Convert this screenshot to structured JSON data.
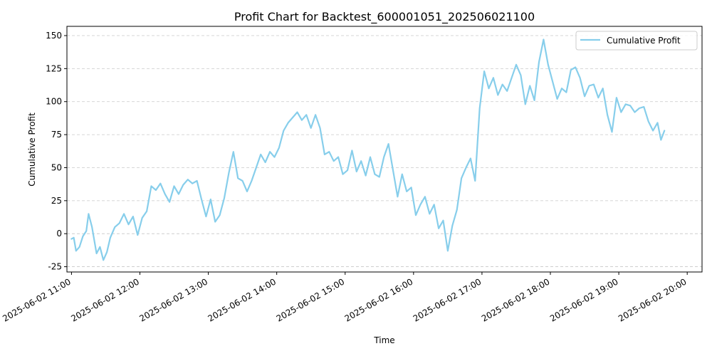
{
  "chart_data": {
    "type": "line",
    "title": "Profit Chart for Backtest_600001051_202506021100",
    "xlabel": "Time",
    "ylabel": "Cumulative Profit",
    "x_is_time": true,
    "xlim": [
      "2025-06-02 10:56",
      "2025-06-02 20:13"
    ],
    "ylim": [
      -29,
      157
    ],
    "yticks": [
      -25,
      0,
      25,
      50,
      75,
      100,
      125,
      150
    ],
    "xticks": [
      "2025-06-02 11:00",
      "2025-06-02 12:00",
      "2025-06-02 13:00",
      "2025-06-02 14:00",
      "2025-06-02 15:00",
      "2025-06-02 16:00",
      "2025-06-02 17:00",
      "2025-06-02 18:00",
      "2025-06-02 19:00",
      "2025-06-02 20:00"
    ],
    "grid": "y-dashed",
    "legend_position": "top-right",
    "series_color": "#87ceeb",
    "series": [
      {
        "name": "Cumulative Profit",
        "points": [
          [
            "2025-06-02 11:00",
            -4
          ],
          [
            "2025-06-02 11:02",
            -3
          ],
          [
            "2025-06-02 11:04",
            -13
          ],
          [
            "2025-06-02 11:07",
            -10
          ],
          [
            "2025-06-02 11:10",
            -2
          ],
          [
            "2025-06-02 11:13",
            2
          ],
          [
            "2025-06-02 11:15",
            15
          ],
          [
            "2025-06-02 11:18",
            5
          ],
          [
            "2025-06-02 11:22",
            -15
          ],
          [
            "2025-06-02 11:25",
            -10
          ],
          [
            "2025-06-02 11:28",
            -20
          ],
          [
            "2025-06-02 11:31",
            -14
          ],
          [
            "2025-06-02 11:34",
            -3
          ],
          [
            "2025-06-02 11:38",
            5
          ],
          [
            "2025-06-02 11:42",
            8
          ],
          [
            "2025-06-02 11:46",
            15
          ],
          [
            "2025-06-02 11:50",
            7
          ],
          [
            "2025-06-02 11:54",
            13
          ],
          [
            "2025-06-02 11:58",
            -1
          ],
          [
            "2025-06-02 12:02",
            12
          ],
          [
            "2025-06-02 12:06",
            17
          ],
          [
            "2025-06-02 12:10",
            36
          ],
          [
            "2025-06-02 12:14",
            33
          ],
          [
            "2025-06-02 12:18",
            38
          ],
          [
            "2025-06-02 12:22",
            30
          ],
          [
            "2025-06-02 12:26",
            24
          ],
          [
            "2025-06-02 12:30",
            36
          ],
          [
            "2025-06-02 12:34",
            30
          ],
          [
            "2025-06-02 12:38",
            37
          ],
          [
            "2025-06-02 12:42",
            41
          ],
          [
            "2025-06-02 12:46",
            38
          ],
          [
            "2025-06-02 12:50",
            40
          ],
          [
            "2025-06-02 12:54",
            26
          ],
          [
            "2025-06-02 12:58",
            13
          ],
          [
            "2025-06-02 13:02",
            26
          ],
          [
            "2025-06-02 13:06",
            9
          ],
          [
            "2025-06-02 13:10",
            14
          ],
          [
            "2025-06-02 13:14",
            27
          ],
          [
            "2025-06-02 13:18",
            46
          ],
          [
            "2025-06-02 13:22",
            62
          ],
          [
            "2025-06-02 13:26",
            42
          ],
          [
            "2025-06-02 13:30",
            40
          ],
          [
            "2025-06-02 13:34",
            32
          ],
          [
            "2025-06-02 13:38",
            40
          ],
          [
            "2025-06-02 13:42",
            50
          ],
          [
            "2025-06-02 13:46",
            60
          ],
          [
            "2025-06-02 13:50",
            54
          ],
          [
            "2025-06-02 13:54",
            62
          ],
          [
            "2025-06-02 13:58",
            58
          ],
          [
            "2025-06-02 14:02",
            65
          ],
          [
            "2025-06-02 14:06",
            78
          ],
          [
            "2025-06-02 14:10",
            84
          ],
          [
            "2025-06-02 14:14",
            88
          ],
          [
            "2025-06-02 14:18",
            92
          ],
          [
            "2025-06-02 14:22",
            86
          ],
          [
            "2025-06-02 14:26",
            90
          ],
          [
            "2025-06-02 14:30",
            80
          ],
          [
            "2025-06-02 14:34",
            90
          ],
          [
            "2025-06-02 14:38",
            80
          ],
          [
            "2025-06-02 14:42",
            60
          ],
          [
            "2025-06-02 14:46",
            62
          ],
          [
            "2025-06-02 14:50",
            55
          ],
          [
            "2025-06-02 14:54",
            58
          ],
          [
            "2025-06-02 14:58",
            45
          ],
          [
            "2025-06-02 15:02",
            48
          ],
          [
            "2025-06-02 15:06",
            63
          ],
          [
            "2025-06-02 15:10",
            47
          ],
          [
            "2025-06-02 15:14",
            55
          ],
          [
            "2025-06-02 15:18",
            44
          ],
          [
            "2025-06-02 15:22",
            58
          ],
          [
            "2025-06-02 15:26",
            45
          ],
          [
            "2025-06-02 15:30",
            43
          ],
          [
            "2025-06-02 15:34",
            58
          ],
          [
            "2025-06-02 15:38",
            68
          ],
          [
            "2025-06-02 15:42",
            48
          ],
          [
            "2025-06-02 15:46",
            28
          ],
          [
            "2025-06-02 15:50",
            45
          ],
          [
            "2025-06-02 15:54",
            32
          ],
          [
            "2025-06-02 15:58",
            35
          ],
          [
            "2025-06-02 16:02",
            14
          ],
          [
            "2025-06-02 16:06",
            22
          ],
          [
            "2025-06-02 16:10",
            28
          ],
          [
            "2025-06-02 16:14",
            15
          ],
          [
            "2025-06-02 16:18",
            22
          ],
          [
            "2025-06-02 16:22",
            4
          ],
          [
            "2025-06-02 16:26",
            10
          ],
          [
            "2025-06-02 16:30",
            -13
          ],
          [
            "2025-06-02 16:34",
            6
          ],
          [
            "2025-06-02 16:38",
            18
          ],
          [
            "2025-06-02 16:42",
            42
          ],
          [
            "2025-06-02 16:46",
            50
          ],
          [
            "2025-06-02 16:50",
            57
          ],
          [
            "2025-06-02 16:54",
            40
          ],
          [
            "2025-06-02 16:58",
            95
          ],
          [
            "2025-06-02 17:02",
            123
          ],
          [
            "2025-06-02 17:06",
            110
          ],
          [
            "2025-06-02 17:10",
            118
          ],
          [
            "2025-06-02 17:14",
            105
          ],
          [
            "2025-06-02 17:18",
            113
          ],
          [
            "2025-06-02 17:22",
            108
          ],
          [
            "2025-06-02 17:26",
            118
          ],
          [
            "2025-06-02 17:30",
            128
          ],
          [
            "2025-06-02 17:34",
            120
          ],
          [
            "2025-06-02 17:38",
            98
          ],
          [
            "2025-06-02 17:42",
            112
          ],
          [
            "2025-06-02 17:46",
            101
          ],
          [
            "2025-06-02 17:50",
            130
          ],
          [
            "2025-06-02 17:54",
            147
          ],
          [
            "2025-06-02 17:58",
            128
          ],
          [
            "2025-06-02 18:02",
            115
          ],
          [
            "2025-06-02 18:06",
            102
          ],
          [
            "2025-06-02 18:10",
            110
          ],
          [
            "2025-06-02 18:14",
            107
          ],
          [
            "2025-06-02 18:18",
            124
          ],
          [
            "2025-06-02 18:22",
            126
          ],
          [
            "2025-06-02 18:26",
            118
          ],
          [
            "2025-06-02 18:30",
            104
          ],
          [
            "2025-06-02 18:34",
            112
          ],
          [
            "2025-06-02 18:38",
            113
          ],
          [
            "2025-06-02 18:42",
            103
          ],
          [
            "2025-06-02 18:46",
            110
          ],
          [
            "2025-06-02 18:50",
            90
          ],
          [
            "2025-06-02 18:54",
            77
          ],
          [
            "2025-06-02 18:58",
            103
          ],
          [
            "2025-06-02 19:02",
            92
          ],
          [
            "2025-06-02 19:06",
            98
          ],
          [
            "2025-06-02 19:10",
            97
          ],
          [
            "2025-06-02 19:14",
            92
          ],
          [
            "2025-06-02 19:18",
            95
          ],
          [
            "2025-06-02 19:22",
            96
          ],
          [
            "2025-06-02 19:26",
            85
          ],
          [
            "2025-06-02 19:30",
            78
          ],
          [
            "2025-06-02 19:34",
            84
          ],
          [
            "2025-06-02 19:37",
            71
          ],
          [
            "2025-06-02 19:40",
            78
          ]
        ]
      }
    ]
  }
}
